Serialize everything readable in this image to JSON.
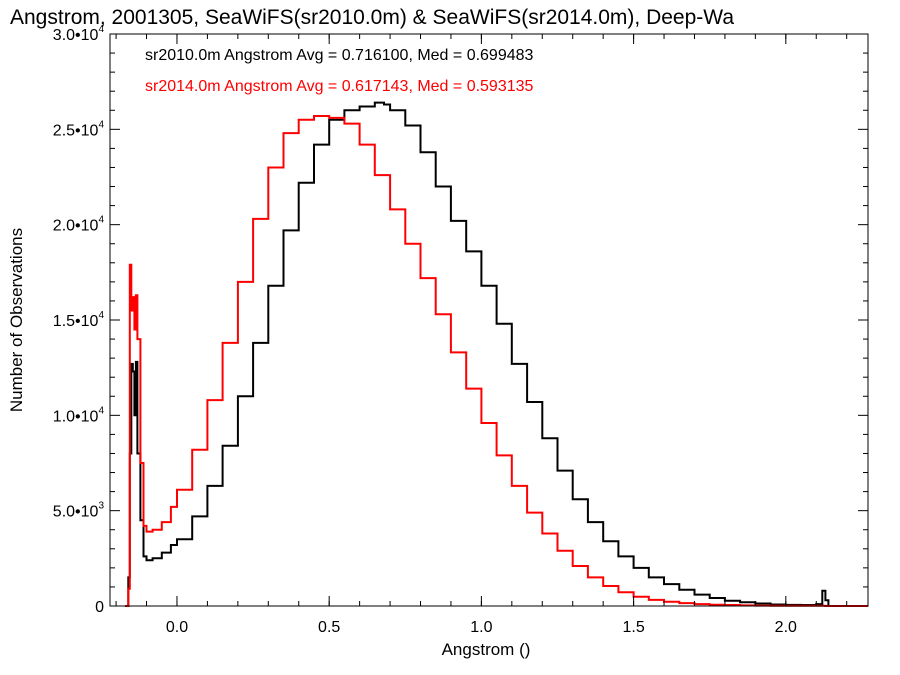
{
  "chart_data": {
    "type": "line",
    "title": "Angstrom, 2001305, SeaWiFS(sr2010.0m) & SeaWiFS(sr2014.0m), Deep-Wa",
    "xlabel": "Angstrom ()",
    "ylabel": "Number of Observations",
    "xlim": [
      -0.22,
      2.27
    ],
    "ylim": [
      0,
      30000
    ],
    "xticks": [
      {
        "value": 0.0,
        "label": "0.0"
      },
      {
        "value": 0.5,
        "label": "0.5"
      },
      {
        "value": 1.0,
        "label": "1.0"
      },
      {
        "value": 1.5,
        "label": "1.5"
      },
      {
        "value": 2.0,
        "label": "2.0"
      }
    ],
    "yticks": [
      {
        "value": 0,
        "mantissa": "0",
        "exp": ""
      },
      {
        "value": 5000,
        "mantissa": "5.0•10",
        "exp": "3"
      },
      {
        "value": 10000,
        "mantissa": "1.0•10",
        "exp": "4"
      },
      {
        "value": 15000,
        "mantissa": "1.5•10",
        "exp": "4"
      },
      {
        "value": 20000,
        "mantissa": "2.0•10",
        "exp": "4"
      },
      {
        "value": 25000,
        "mantissa": "2.5•10",
        "exp": "4"
      },
      {
        "value": 30000,
        "mantissa": "3.0•10",
        "exp": "4"
      }
    ],
    "grid": false,
    "step": true,
    "series": [
      {
        "legend": "sr2010.0m Angstrom Avg = 0.716100, Med = 0.699483",
        "color": "#000000",
        "x": [
          -0.17,
          -0.16,
          -0.155,
          -0.15,
          -0.145,
          -0.14,
          -0.135,
          -0.13,
          -0.12,
          -0.11,
          -0.1,
          -0.08,
          -0.05,
          -0.02,
          0.0,
          0.05,
          0.1,
          0.15,
          0.2,
          0.25,
          0.3,
          0.35,
          0.4,
          0.45,
          0.5,
          0.55,
          0.6,
          0.65,
          0.68,
          0.7,
          0.75,
          0.8,
          0.85,
          0.9,
          0.95,
          1.0,
          1.05,
          1.1,
          1.15,
          1.2,
          1.25,
          1.3,
          1.35,
          1.4,
          1.45,
          1.5,
          1.55,
          1.6,
          1.65,
          1.7,
          1.75,
          1.8,
          1.85,
          1.9,
          1.95,
          2.0,
          2.05,
          2.1,
          2.12,
          2.13,
          2.14,
          2.15,
          2.27
        ],
        "y": [
          0,
          1500,
          8000,
          12700,
          12300,
          10000,
          12800,
          8000,
          4500,
          2600,
          2400,
          2500,
          2800,
          3200,
          3500,
          4700,
          6300,
          8400,
          11000,
          13800,
          16800,
          19700,
          22200,
          24200,
          25500,
          26000,
          26200,
          26400,
          26300,
          26000,
          25200,
          23800,
          22000,
          20200,
          18600,
          16800,
          14800,
          12700,
          10700,
          8800,
          7100,
          5600,
          4400,
          3400,
          2600,
          2000,
          1500,
          1150,
          850,
          600,
          420,
          280,
          200,
          130,
          80,
          60,
          50,
          100,
          800,
          300,
          0,
          0,
          0
        ]
      },
      {
        "legend": "sr2014.0m Angstrom Avg = 0.617143, Med = 0.593135",
        "color": "#ff0000",
        "x": [
          -0.17,
          -0.16,
          -0.155,
          -0.15,
          -0.145,
          -0.14,
          -0.135,
          -0.13,
          -0.12,
          -0.11,
          -0.1,
          -0.08,
          -0.05,
          -0.02,
          0.0,
          0.05,
          0.1,
          0.15,
          0.2,
          0.25,
          0.3,
          0.35,
          0.4,
          0.45,
          0.5,
          0.55,
          0.6,
          0.65,
          0.7,
          0.75,
          0.8,
          0.85,
          0.9,
          0.95,
          1.0,
          1.05,
          1.1,
          1.15,
          1.2,
          1.25,
          1.3,
          1.35,
          1.4,
          1.45,
          1.5,
          1.55,
          1.6,
          1.65,
          1.7,
          1.75,
          1.8,
          1.85,
          1.9,
          1.95,
          2.0,
          2.05,
          2.1,
          2.13,
          2.14,
          2.27
        ],
        "y": [
          0,
          900,
          17900,
          15500,
          16200,
          14500,
          16300,
          14000,
          7500,
          4200,
          3900,
          4000,
          4400,
          5200,
          6100,
          8200,
          10800,
          13800,
          17000,
          20300,
          23000,
          24800,
          25500,
          25700,
          25600,
          25300,
          24200,
          22600,
          20800,
          19000,
          17200,
          15300,
          13300,
          11400,
          9600,
          7900,
          6300,
          4900,
          3800,
          2900,
          2100,
          1500,
          1050,
          720,
          480,
          320,
          220,
          150,
          100,
          70,
          50,
          30,
          20,
          10,
          10,
          10,
          10,
          0,
          0,
          0
        ]
      }
    ]
  }
}
